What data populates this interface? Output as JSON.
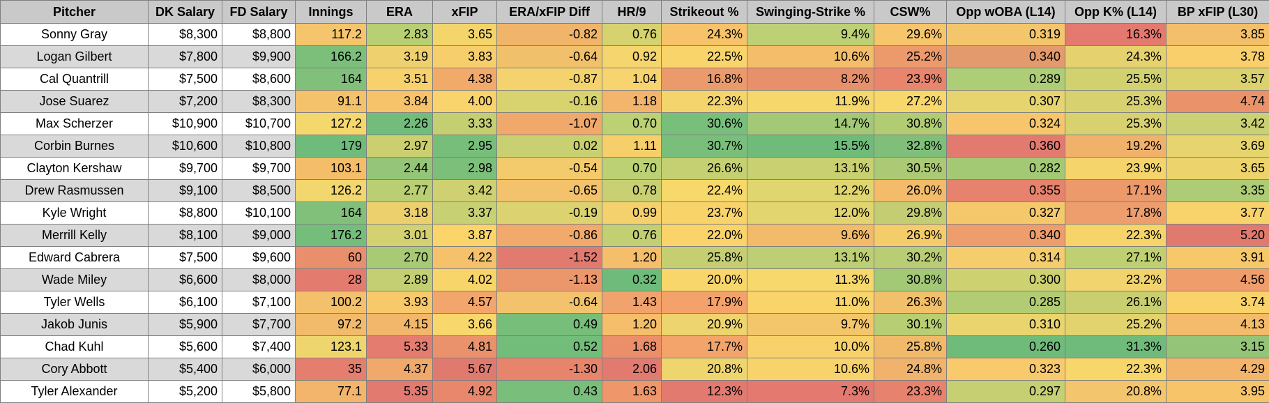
{
  "headers": [
    "Pitcher",
    "DK Salary",
    "FD Salary",
    "Innings",
    "ERA",
    "xFIP",
    "ERA/xFIP Diff",
    "HR/9",
    "Strikeout %",
    "Swinging-Strike %",
    "CSW%",
    "Opp wOBA (L14)",
    "Opp K% (L14)",
    "BP xFIP (L30)"
  ],
  "rows": [
    {
      "cells": [
        "Sonny Gray",
        "$8,300",
        "$8,800",
        "117.2",
        "2.83",
        "3.65",
        "-0.82",
        "0.76",
        "24.3%",
        "9.4%",
        "29.6%",
        "0.319",
        "16.3%",
        "3.85"
      ],
      "colors": [
        "#f4c56d",
        "#b9cf73",
        "#f4d56b",
        "#f0b56a",
        "#d6d26f",
        "#f6c36a",
        "#bdd076",
        "#f6c56c",
        "#f4c66c",
        "#e47a6f",
        "#f3bf6a"
      ]
    },
    {
      "cells": [
        "Logan Gilbert",
        "$7,800",
        "$9,900",
        "166.2",
        "3.19",
        "3.83",
        "-0.64",
        "0.92",
        "22.5%",
        "10.6%",
        "25.2%",
        "0.340",
        "24.3%",
        "3.78"
      ],
      "colors": [
        "#7bbf7b",
        "#eed06e",
        "#f6cf6c",
        "#f1c06b",
        "#f5d56d",
        "#f8d46a",
        "#f3bd6a",
        "#ec9a6c",
        "#e39a6c",
        "#e5d26f",
        "#f8cf6b"
      ]
    },
    {
      "cells": [
        "Cal Quantrill",
        "$7,500",
        "$8,600",
        "164",
        "3.51",
        "4.38",
        "-0.87",
        "1.04",
        "16.8%",
        "8.2%",
        "23.9%",
        "0.289",
        "25.5%",
        "3.57"
      ],
      "colors": [
        "#80c07b",
        "#f7d16b",
        "#f2aa6b",
        "#f4d26d",
        "#f7d46d",
        "#eb9a6c",
        "#e8906b",
        "#e9856d",
        "#aecd77",
        "#d2d170",
        "#dbd16d"
      ]
    },
    {
      "cells": [
        "Jose Suarez",
        "$7,200",
        "$8,300",
        "91.1",
        "3.84",
        "4.00",
        "-0.16",
        "1.18",
        "22.3%",
        "11.9%",
        "27.2%",
        "0.307",
        "25.3%",
        "4.74"
      ],
      "colors": [
        "#f4c26b",
        "#f6c26a",
        "#f9d36b",
        "#d8d26f",
        "#f3b56b",
        "#f4d46c",
        "#f6d76c",
        "#f9d86b",
        "#e6d46e",
        "#d8d170",
        "#ea936b"
      ]
    },
    {
      "cells": [
        "Max Scherzer",
        "$10,900",
        "$10,700",
        "127.2",
        "2.26",
        "3.33",
        "-1.07",
        "0.70",
        "30.6%",
        "14.7%",
        "30.8%",
        "0.324",
        "25.3%",
        "3.42"
      ],
      "colors": [
        "#f4d86d",
        "#72bd7b",
        "#c4cf72",
        "#f0a96b",
        "#bcd074",
        "#78bf7b",
        "#a3c876",
        "#b2cc74",
        "#f7c66c",
        "#d8d170",
        "#cad073"
      ]
    },
    {
      "cells": [
        "Corbin Burnes",
        "$10,600",
        "$10,800",
        "179",
        "2.97",
        "2.95",
        "0.02",
        "1.11",
        "30.7%",
        "15.5%",
        "32.8%",
        "0.360",
        "19.2%",
        "3.69"
      ],
      "colors": [
        "#6fbb7b",
        "#cbcf70",
        "#77be7a",
        "#c9d071",
        "#f6cf6b",
        "#79be7b",
        "#6fbb7a",
        "#7fbf79",
        "#e27a6f",
        "#f0b16b",
        "#e6d46e"
      ]
    },
    {
      "cells": [
        "Clayton Kershaw",
        "$9,700",
        "$9,700",
        "103.1",
        "2.44",
        "2.98",
        "-0.54",
        "0.70",
        "26.6%",
        "13.1%",
        "30.5%",
        "0.282",
        "23.9%",
        "3.65"
      ],
      "colors": [
        "#f3bd6a",
        "#95c578",
        "#7cbf7a",
        "#f4cb6c",
        "#bcd074",
        "#c5d072",
        "#c8d071",
        "#acca75",
        "#a4c975",
        "#f5d46c",
        "#ecd36c"
      ]
    },
    {
      "cells": [
        "Drew Rasmussen",
        "$9,100",
        "$8,500",
        "126.2",
        "2.77",
        "3.42",
        "-0.65",
        "0.78",
        "22.4%",
        "12.2%",
        "26.0%",
        "0.355",
        "17.1%",
        "3.35"
      ],
      "colors": [
        "#f2d66e",
        "#bace74",
        "#cfd071",
        "#f2c26c",
        "#c8d073",
        "#f6d86b",
        "#e0d66f",
        "#f3bb6a",
        "#e6826d",
        "#ec9a6c",
        "#aecb75"
      ]
    },
    {
      "cells": [
        "Kyle Wright",
        "$8,800",
        "$10,100",
        "164",
        "3.18",
        "3.37",
        "-0.19",
        "0.99",
        "23.7%",
        "12.0%",
        "29.8%",
        "0.327",
        "17.8%",
        "3.77"
      ],
      "colors": [
        "#80c07b",
        "#ecd06e",
        "#c7d073",
        "#dcd370",
        "#f4d16d",
        "#f8d36a",
        "#e2d46f",
        "#c4cd72",
        "#f5c86c",
        "#ee9d6c",
        "#f8d26b"
      ]
    },
    {
      "cells": [
        "Merrill Kelly",
        "$8,100",
        "$9,000",
        "176.2",
        "3.01",
        "3.87",
        "-0.86",
        "0.76",
        "22.0%",
        "9.6%",
        "26.9%",
        "0.340",
        "22.3%",
        "5.20"
      ],
      "colors": [
        "#74bd7a",
        "#d3d170",
        "#fbd56a",
        "#f1aa6b",
        "#c3cf73",
        "#fad36b",
        "#f2bb6a",
        "#f5cc6a",
        "#ee9d6c",
        "#f6d46a",
        "#e07a6f"
      ]
    },
    {
      "cells": [
        "Edward Cabrera",
        "$7,500",
        "$9,600",
        "60",
        "2.70",
        "4.22",
        "-1.52",
        "1.20",
        "25.8%",
        "13.1%",
        "30.2%",
        "0.314",
        "27.1%",
        "3.91"
      ],
      "colors": [
        "#e98f6c",
        "#a9ca75",
        "#f5c16b",
        "#e27b6f",
        "#f5be6b",
        "#c5cf72",
        "#bdce74",
        "#b9cd74",
        "#f5cd6c",
        "#bfd072",
        "#f7c86a"
      ]
    },
    {
      "cells": [
        "Wade Miley",
        "$6,600",
        "$8,000",
        "28",
        "2.89",
        "4.02",
        "-1.13",
        "0.32",
        "20.0%",
        "11.3%",
        "30.8%",
        "0.300",
        "23.2%",
        "4.56"
      ],
      "colors": [
        "#e37b6f",
        "#c3cf72",
        "#f7d56b",
        "#ec966b",
        "#6fbb7b",
        "#f8d66b",
        "#f6d86c",
        "#a3c876",
        "#cdd170",
        "#f1d46d",
        "#ee9d6b"
      ]
    },
    {
      "cells": [
        "Tyler Wells",
        "$6,100",
        "$7,100",
        "100.2",
        "3.93",
        "4.57",
        "-0.64",
        "1.43",
        "17.9%",
        "11.0%",
        "26.3%",
        "0.285",
        "26.1%",
        "3.74"
      ],
      "colors": [
        "#f3c06b",
        "#f7c96a",
        "#f2a66b",
        "#f2c26c",
        "#f0a36c",
        "#f4a26b",
        "#f8d46a",
        "#f2c06a",
        "#b2cc74",
        "#c9cf71",
        "#f9d26a"
      ]
    },
    {
      "cells": [
        "Jakob Junis",
        "$5,900",
        "$7,700",
        "97.2",
        "4.15",
        "3.66",
        "0.49",
        "1.20",
        "20.9%",
        "9.7%",
        "30.1%",
        "0.310",
        "25.2%",
        "4.13"
      ],
      "colors": [
        "#f2bb6b",
        "#f2b76a",
        "#f8d86c",
        "#76be7a",
        "#f5be6b",
        "#eed46e",
        "#f4c66c",
        "#b8ce74",
        "#ead46e",
        "#e2d36f",
        "#f3bb6b"
      ]
    },
    {
      "cells": [
        "Chad Kuhl",
        "$5,600",
        "$7,400",
        "123.1",
        "5.33",
        "4.81",
        "0.52",
        "1.68",
        "17.7%",
        "10.0%",
        "25.8%",
        "0.260",
        "31.3%",
        "3.15"
      ],
      "colors": [
        "#eed56e",
        "#e47d6f",
        "#ea926b",
        "#73bd7a",
        "#eb8f6b",
        "#f2a46a",
        "#f8d16a",
        "#f0ba6a",
        "#6fbb7a",
        "#6fbb7b",
        "#94c477"
      ]
    },
    {
      "cells": [
        "Cory Abbott",
        "$5,400",
        "$6,000",
        "35",
        "4.37",
        "5.67",
        "-1.30",
        "2.06",
        "20.8%",
        "10.6%",
        "24.8%",
        "0.323",
        "22.3%",
        "4.29"
      ],
      "colors": [
        "#e47e6f",
        "#f0a86b",
        "#e07a6f",
        "#e7856c",
        "#e27a6f",
        "#eed56d",
        "#f8d26a",
        "#f1b26b",
        "#f8ca6b",
        "#f8d76a",
        "#f3b56b"
      ]
    },
    {
      "cells": [
        "Tyler Alexander",
        "$5,200",
        "$5,800",
        "77.1",
        "5.35",
        "4.92",
        "0.43",
        "1.63",
        "12.3%",
        "7.3%",
        "23.3%",
        "0.297",
        "20.8%",
        "3.95"
      ],
      "colors": [
        "#f3b46b",
        "#e27a6f",
        "#e8876c",
        "#79be7b",
        "#ef966b",
        "#e27a6f",
        "#e47a6f",
        "#e6826d",
        "#c6cf72",
        "#f3c56c",
        "#f7c46a"
      ]
    }
  ]
}
